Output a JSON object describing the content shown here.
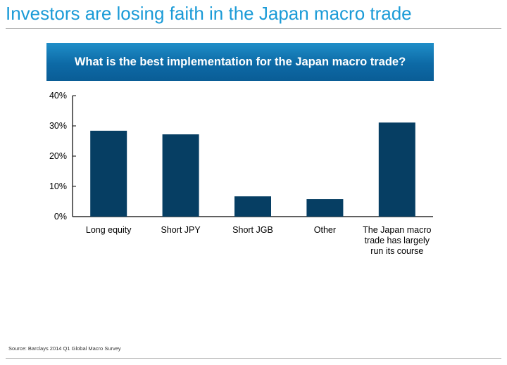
{
  "slide": {
    "title": "Investors are losing faith in the Japan macro trade",
    "source": "Source: Barclays 2014 Q1 Global Macro Survey"
  },
  "colors": {
    "title": "#1b9bd7",
    "banner": "#0d6aa6",
    "bar": "#063e63",
    "axis": "#000000"
  },
  "chart_data": {
    "type": "bar",
    "title": "What is the best implementation for the Japan macro trade?",
    "categories": [
      [
        "Long equity"
      ],
      [
        "Short JPY"
      ],
      [
        "Short JGB"
      ],
      [
        "Other"
      ],
      [
        "The Japan macro",
        "trade has largely",
        "run its course"
      ]
    ],
    "values": [
      28.4,
      27.2,
      6.7,
      5.8,
      31.1
    ],
    "ylim": [
      0,
      40
    ],
    "yticks": [
      0,
      10,
      20,
      30,
      40
    ],
    "ytick_format": "{v}%",
    "xlabel": "",
    "ylabel": "",
    "grid": false,
    "legend": "none"
  }
}
